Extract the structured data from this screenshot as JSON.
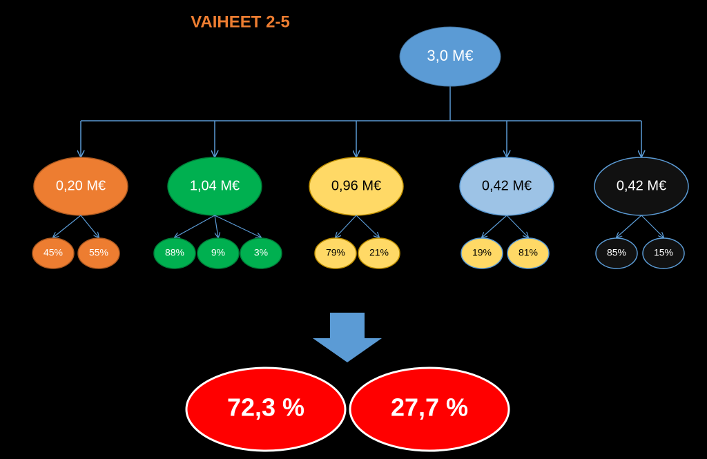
{
  "title": "VAIHEET 2-5",
  "root": "3,0 M€",
  "branches": [
    {
      "label": "0,20 M€",
      "children": [
        "45%",
        "55%"
      ]
    },
    {
      "label": "1,04 M€",
      "children": [
        "88%",
        "9%",
        "3%"
      ]
    },
    {
      "label": "0,96 M€",
      "children": [
        "79%",
        "21%"
      ]
    },
    {
      "label": "0,42 M€",
      "children": [
        "19%",
        "81%"
      ]
    },
    {
      "label": "0,42 M€",
      "children": [
        "85%",
        "15%"
      ]
    }
  ],
  "results": [
    "72,3 %",
    "27,7 %"
  ]
}
